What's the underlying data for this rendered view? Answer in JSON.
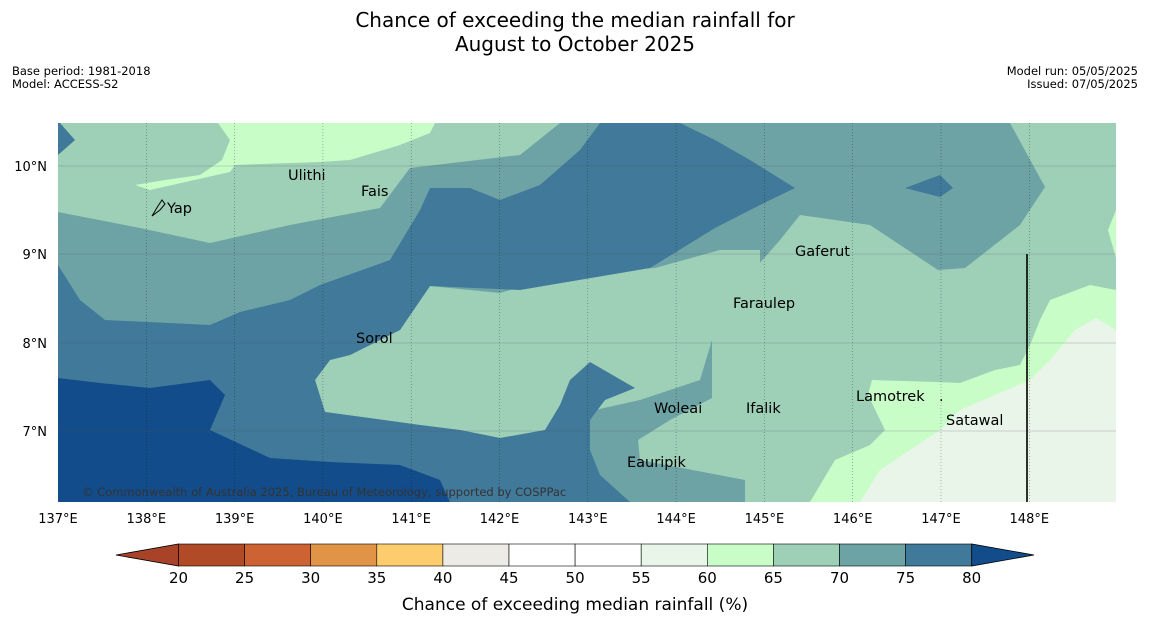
{
  "header": {
    "title_line1": "Chance of exceeding the median rainfall for",
    "title_line2": "August to October 2025",
    "base_period": "Base period: 1981-2018",
    "model": "Model: ACCESS-S2",
    "model_run": "Model run: 05/05/2025",
    "issued": "Issued: 07/05/2025"
  },
  "map": {
    "lon_ticks": [
      "137°E",
      "138°E",
      "139°E",
      "140°E",
      "141°E",
      "142°E",
      "143°E",
      "144°E",
      "145°E",
      "146°E",
      "147°E",
      "148°E"
    ],
    "lat_ticks": [
      "10°N",
      "9°N",
      "8°N",
      "7°N"
    ],
    "places": [
      "Yap",
      "Ulithi",
      "Fais",
      "Gaferut",
      "Faraulep",
      "Sorol",
      "Woleai",
      "Ifalik",
      "Lamotrek",
      "Satawal",
      "Eauripik"
    ],
    "copyright": "© Commonwealth of Australia 2025, Bureau of Meteorology, supported by COSPPac"
  },
  "colorbar": {
    "ticks": [
      "20",
      "25",
      "30",
      "35",
      "40",
      "45",
      "50",
      "55",
      "60",
      "65",
      "70",
      "75",
      "80"
    ],
    "label": "Chance of exceeding median rainfall (%)",
    "colors": [
      "#a8432a",
      "#b14b27",
      "#cd6332",
      "#e29446",
      "#fdcd6d",
      "#ecebe6",
      "#ffffff",
      "#ffffff",
      "#e9f5e9",
      "#c9fdc8",
      "#9ecfb7",
      "#6ea3a5",
      "#41799a",
      "#134c8a"
    ]
  }
}
